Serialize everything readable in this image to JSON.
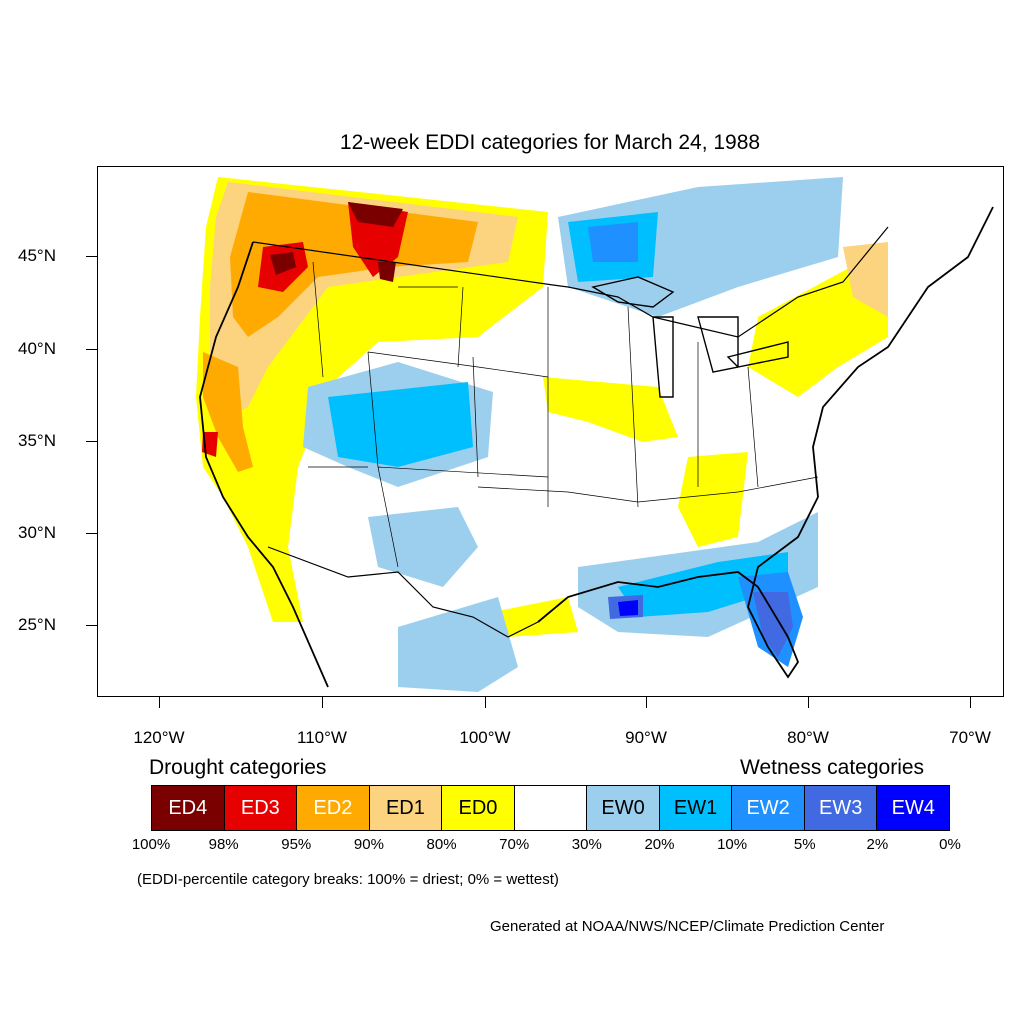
{
  "title": "12-week EDDI categories for March 24, 1988",
  "lat_labels": [
    "45°N",
    "40°N",
    "35°N",
    "30°N",
    "25°N"
  ],
  "lon_labels": [
    "120°W",
    "110°W",
    "100°W",
    "90°W",
    "80°W",
    "70°W"
  ],
  "legend": {
    "drought_heading": "Drought categories",
    "wetness_heading": "Wetness categories",
    "categories": [
      {
        "label": "ED4",
        "color": "#7a0000",
        "text_color": "#ffffff"
      },
      {
        "label": "ED3",
        "color": "#e60000",
        "text_color": "#ffffff"
      },
      {
        "label": "ED2",
        "color": "#ffaa00",
        "text_color": "#ffffff"
      },
      {
        "label": "ED1",
        "color": "#fcd37f",
        "text_color": "#000000"
      },
      {
        "label": "ED0",
        "color": "#ffff00",
        "text_color": "#000000"
      },
      {
        "label": "",
        "color": "#ffffff",
        "text_color": "#000000"
      },
      {
        "label": "EW0",
        "color": "#9ccfee",
        "text_color": "#000000"
      },
      {
        "label": "EW1",
        "color": "#00bfff",
        "text_color": "#000000"
      },
      {
        "label": "EW2",
        "color": "#1e90ff",
        "text_color": "#ffffff"
      },
      {
        "label": "EW3",
        "color": "#4169e1",
        "text_color": "#ffffff"
      },
      {
        "label": "EW4",
        "color": "#0000ff",
        "text_color": "#ffffff"
      }
    ],
    "percentiles": [
      "100%",
      "98%",
      "95%",
      "90%",
      "80%",
      "70%",
      "30%",
      "20%",
      "10%",
      "5%",
      "2%",
      "0%"
    ],
    "note": "(EDDI-percentile category breaks: 100% = driest; 0% = wettest)"
  },
  "credit": "Generated at NOAA/NWS/NCEP/Climate Prediction Center"
}
